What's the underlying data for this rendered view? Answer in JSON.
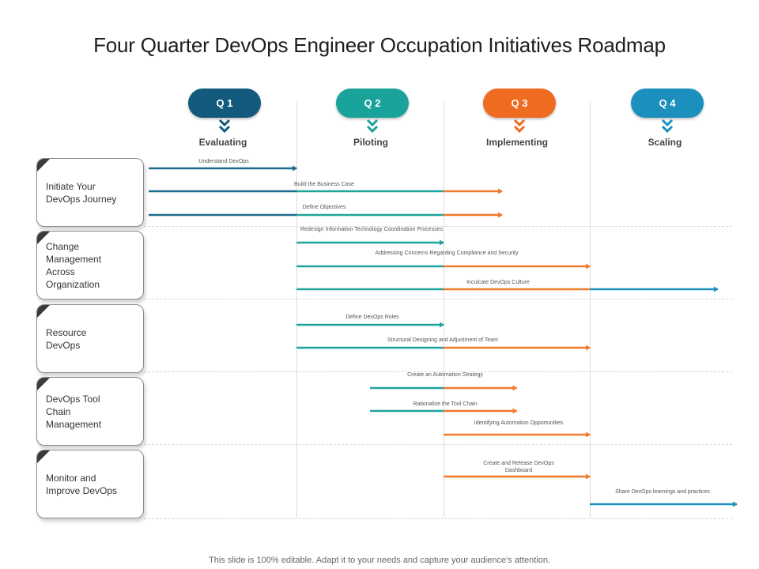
{
  "title": "Four Quarter DevOps Engineer Occupation Initiatives Roadmap",
  "colors": {
    "q1": "#145a7c",
    "q2": "#1aa39a",
    "q3": "#ee6b1f",
    "q4": "#1b8fbe",
    "q1_bar": "#1f6b8e",
    "q2_bar": "#1ea59a",
    "q3_bar": "#ef7a2a",
    "q4_bar": "#1d8fbd"
  },
  "quarters": [
    {
      "label": "Q 1",
      "phase": "Evaluating",
      "icon": "double-chevron-down-icon"
    },
    {
      "label": "Q 2",
      "phase": "Piloting",
      "icon": "double-chevron-down-icon"
    },
    {
      "label": "Q 3",
      "phase": "Implementing",
      "icon": "double-chevron-down-icon"
    },
    {
      "label": "Q 4",
      "phase": "Scaling",
      "icon": "double-chevron-down-icon"
    }
  ],
  "categories": [
    {
      "label": "Initiate Your\nDevOps  Journey"
    },
    {
      "label": "Change\nManagement\nAcross\nOrganization"
    },
    {
      "label": "Resource\nDevOps"
    },
    {
      "label": "DevOps  Tool\nChain\nManagement"
    },
    {
      "label": "Monitor and\nImprove  DevOps"
    }
  ],
  "tasks": [
    {
      "label": "Understand  DevOps",
      "start": 0.0,
      "end": 1.0
    },
    {
      "label": "Build the Business Case",
      "start": 0.0,
      "end": 2.4
    },
    {
      "label": "Define Objectives",
      "start": 0.0,
      "end": 2.4
    },
    {
      "label": "Redesign  Information  Technology  Coordination  Processes",
      "start": 1.0,
      "end": 2.0
    },
    {
      "label": "Addressing Concerns  Regarding  Compliance and Security",
      "start": 1.0,
      "end": 3.0
    },
    {
      "label": "Inculcate DevOps Culture",
      "start": 1.0,
      "end": 3.87
    },
    {
      "label": "Define DevOps  Roles",
      "start": 1.0,
      "end": 2.0
    },
    {
      "label": "Structural  Designing  and Adjustment  of Team",
      "start": 1.0,
      "end": 3.0
    },
    {
      "label": "Create an  Automation  Strategy",
      "start": 1.5,
      "end": 2.5
    },
    {
      "label": "Rationalize  the Tool Chain",
      "start": 1.5,
      "end": 2.5
    },
    {
      "label": "Identifying  Automation  Opportunities",
      "start": 2.0,
      "end": 3.0
    },
    {
      "label": "Create and  Release  DevOps Dashboard",
      "start": 2.0,
      "end": 3.0
    },
    {
      "label": "Share  DevOps  learnings  and practices",
      "start": 3.0,
      "end": 4.0
    }
  ],
  "footer": "This slide is 100% editable. Adapt it to your needs and capture your audience's attention."
}
